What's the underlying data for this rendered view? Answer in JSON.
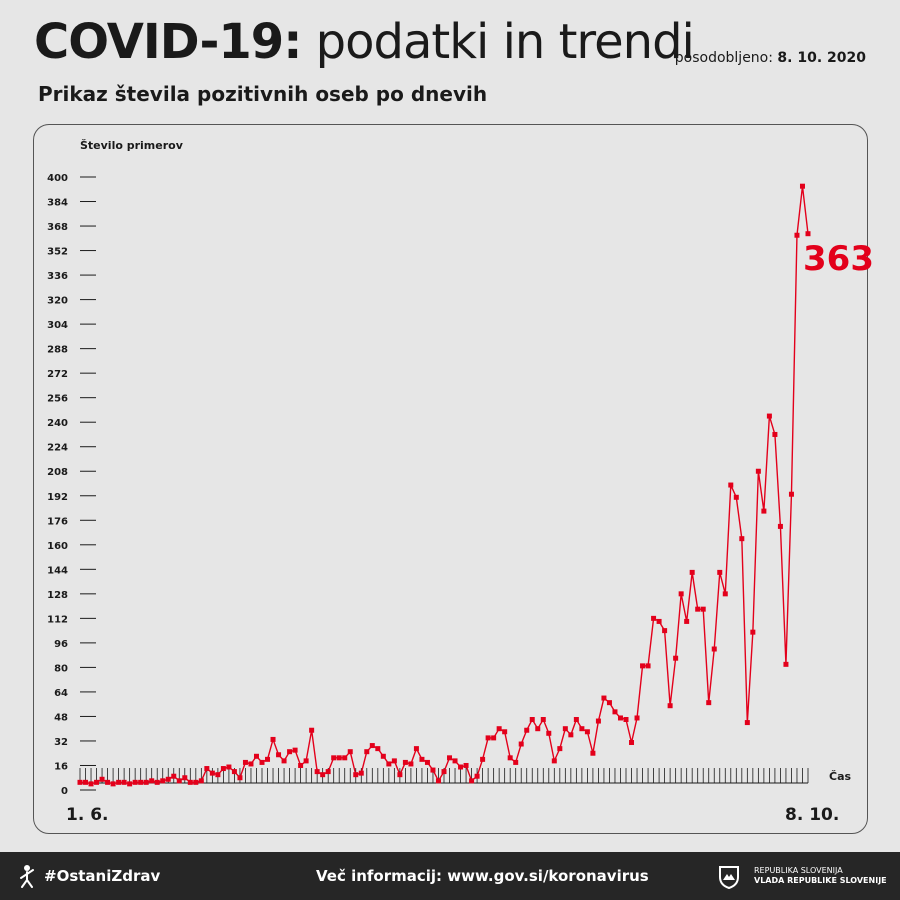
{
  "header": {
    "title_bold": "COVID-19:",
    "title_rest": " podatki in trendi",
    "updated_label": "posodobljeno: ",
    "updated_date": "8. 10. 2020",
    "subtitle": "Prikaz števila pozitivnih oseb po dnevih"
  },
  "footer": {
    "hashtag": "#OstaniZdrav",
    "info": "Več informacij: www.gov.si/koronavirus",
    "gov_line1": "REPUBLIKA SLOVENIJA",
    "gov_line2": "VLADA REPUBLIKE SLOVENIJE"
  },
  "colors": {
    "series": "#e3001b",
    "text": "#1a1a1a",
    "footer_bg": "#262626",
    "background": "#e6e6e6"
  },
  "icons": {
    "hashtag": "person-icon",
    "government": "coat-of-arms-icon"
  },
  "chart_data": {
    "type": "line",
    "ylabel": "Število primerov",
    "xlabel": "Čas",
    "x_start_label": "1. 6.",
    "x_end_label": "8. 10.",
    "y_ticks": [
      0,
      16,
      32,
      48,
      64,
      80,
      96,
      112,
      128,
      144,
      160,
      176,
      192,
      208,
      224,
      240,
      256,
      272,
      288,
      304,
      320,
      336,
      352,
      368,
      384,
      400
    ],
    "ylim": [
      0,
      400
    ],
    "grid": false,
    "highlight_label": "363",
    "series": [
      {
        "values": [
          5,
          5,
          4,
          5,
          7,
          5,
          4,
          5,
          5,
          4,
          5,
          5,
          5,
          6,
          5,
          6,
          7,
          9,
          6,
          8,
          5,
          5,
          6,
          14,
          11,
          10,
          14,
          15,
          12,
          8,
          18,
          17,
          22,
          18,
          20,
          33,
          23,
          19,
          25,
          26,
          16,
          19,
          39,
          12,
          10,
          12,
          21,
          21,
          21,
          25,
          10,
          11,
          25,
          29,
          27,
          22,
          17,
          19,
          10,
          18,
          17,
          27,
          20,
          18,
          13,
          6,
          12,
          21,
          19,
          15,
          16,
          6,
          9,
          20,
          34,
          34,
          40,
          38,
          21,
          18,
          30,
          39,
          46,
          40,
          46,
          37,
          19,
          27,
          40,
          36,
          46,
          40,
          38,
          24,
          45,
          60,
          57,
          51,
          47,
          46,
          31,
          47,
          81,
          81,
          112,
          110,
          104,
          55,
          86,
          128,
          110,
          142,
          118,
          118,
          57,
          92,
          142,
          128,
          199,
          191,
          164,
          44,
          103,
          208,
          182,
          244,
          232,
          172,
          82,
          193,
          362,
          394,
          363
        ]
      }
    ]
  }
}
